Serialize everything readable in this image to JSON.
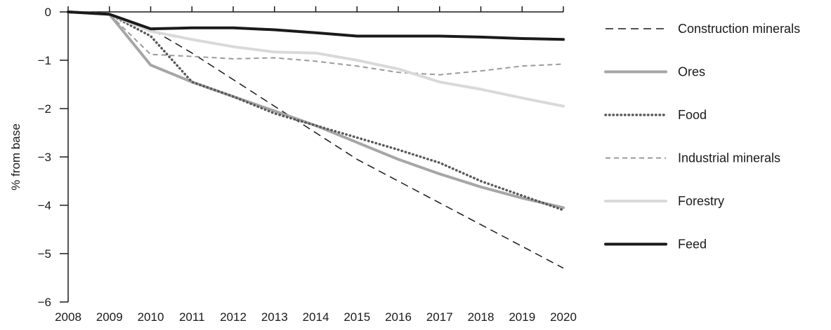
{
  "chart_data": {
    "type": "line",
    "title": "",
    "xlabel": "",
    "ylabel": "% from base",
    "x": [
      "2008",
      "2009",
      "2010",
      "2011",
      "2012",
      "2013",
      "2014",
      "2015",
      "2016",
      "2017",
      "2018",
      "2019",
      "2020"
    ],
    "xlim": [
      2008,
      2020
    ],
    "ylim": [
      -6,
      0
    ],
    "yticks": [
      0,
      -1,
      -2,
      -3,
      -4,
      -5,
      -6
    ],
    "ytick_labels": [
      "0",
      "−1",
      "−2",
      "−3",
      "−4",
      "−5",
      "−6"
    ],
    "grid": false,
    "legend_position": "right",
    "series": [
      {
        "name": "Construction minerals",
        "key": "construction-minerals",
        "color": "#1a1a1a",
        "style": "dashed",
        "values": [
          0,
          -0.05,
          -0.35,
          -0.85,
          -1.4,
          -1.95,
          -2.5,
          -3.05,
          -3.5,
          -3.95,
          -4.4,
          -4.85,
          -5.3
        ]
      },
      {
        "name": "Ores",
        "key": "ores",
        "color": "#a6a6a6",
        "style": "solid-thick",
        "values": [
          0,
          -0.05,
          -1.1,
          -1.45,
          -1.75,
          -2.05,
          -2.35,
          -2.7,
          -3.05,
          -3.35,
          -3.62,
          -3.85,
          -4.05
        ]
      },
      {
        "name": "Food",
        "key": "food",
        "color": "#595959",
        "style": "dotted",
        "values": [
          0,
          -0.05,
          -0.5,
          -1.45,
          -1.75,
          -2.1,
          -2.35,
          -2.6,
          -2.85,
          -3.12,
          -3.5,
          -3.8,
          -4.1
        ]
      },
      {
        "name": "Industrial minerals",
        "key": "industrial-minerals",
        "color": "#9a9a9a",
        "style": "dashed-thin",
        "values": [
          0,
          -0.05,
          -0.88,
          -0.92,
          -0.97,
          -0.95,
          -1.02,
          -1.12,
          -1.25,
          -1.3,
          -1.22,
          -1.12,
          -1.08
        ]
      },
      {
        "name": "Forestry",
        "key": "forestry",
        "color": "#d9d9d9",
        "style": "solid-thick",
        "values": [
          0,
          -0.05,
          -0.4,
          -0.57,
          -0.72,
          -0.83,
          -0.85,
          -1.0,
          -1.18,
          -1.45,
          -1.6,
          -1.78,
          -1.95
        ]
      },
      {
        "name": "Feed",
        "key": "feed",
        "color": "#1a1a1a",
        "style": "solid-thick",
        "values": [
          0,
          -0.05,
          -0.35,
          -0.33,
          -0.33,
          -0.37,
          -0.43,
          -0.5,
          -0.5,
          -0.5,
          -0.52,
          -0.55,
          -0.57
        ]
      }
    ]
  }
}
